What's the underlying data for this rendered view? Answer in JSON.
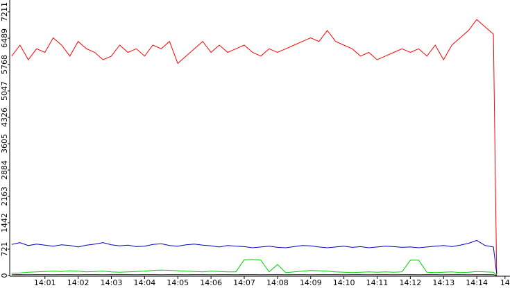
{
  "chart_data": {
    "type": "line",
    "x": [
      0,
      0.25,
      0.5,
      0.75,
      1,
      1.25,
      1.5,
      1.75,
      2,
      2.25,
      2.5,
      2.75,
      3,
      3.25,
      3.5,
      3.75,
      4,
      4.25,
      4.5,
      4.75,
      5,
      5.25,
      5.5,
      5.75,
      6,
      6.25,
      6.5,
      6.75,
      7,
      7.25,
      7.5,
      7.75,
      8,
      8.25,
      8.5,
      8.75,
      9,
      9.25,
      9.5,
      9.75,
      10,
      10.25,
      10.5,
      10.75,
      11,
      11.25,
      11.5,
      11.75,
      12,
      12.25,
      12.5,
      12.75,
      13,
      13.25,
      13.5,
      13.75,
      14,
      14.25,
      14.5,
      14.6
    ],
    "series": [
      {
        "color": "#ff0000",
        "values": [
          6000,
          6300,
          5900,
          6200,
          6100,
          6500,
          6300,
          6000,
          6400,
          6200,
          6100,
          5900,
          6000,
          6300,
          6100,
          6200,
          6000,
          6300,
          6200,
          6400,
          5800,
          6000,
          6200,
          6400,
          6100,
          6300,
          6100,
          6200,
          6300,
          6100,
          6000,
          6200,
          6100,
          6200,
          6300,
          6400,
          6500,
          6400,
          6700,
          6400,
          6300,
          6200,
          6000,
          6100,
          5900,
          6000,
          6100,
          6200,
          6100,
          6200,
          6000,
          6300,
          5900,
          6300,
          6500,
          6700,
          7000,
          6800,
          6600,
          0
        ]
      },
      {
        "color": "#0000c0",
        "values": [
          850,
          900,
          820,
          860,
          830,
          800,
          840,
          820,
          780,
          830,
          860,
          900,
          840,
          810,
          830,
          790,
          800,
          850,
          870,
          820,
          800,
          840,
          860,
          830,
          810,
          780,
          820,
          800,
          790,
          760,
          780,
          800,
          770,
          760,
          790,
          820,
          810,
          780,
          760,
          780,
          800,
          770,
          790,
          760,
          780,
          800,
          790,
          770,
          780,
          760,
          780,
          800,
          820,
          790,
          830,
          880,
          960,
          820,
          780,
          50
        ]
      },
      {
        "color": "#00d000",
        "values": [
          60,
          70,
          90,
          100,
          110,
          120,
          110,
          130,
          120,
          100,
          110,
          120,
          100,
          90,
          100,
          110,
          120,
          140,
          150,
          140,
          130,
          120,
          110,
          100,
          120,
          110,
          100,
          100,
          430,
          440,
          420,
          100,
          300,
          80,
          100,
          120,
          140,
          130,
          120,
          100,
          90,
          80,
          90,
          100,
          90,
          100,
          90,
          100,
          420,
          420,
          90,
          80,
          90,
          100,
          80,
          90,
          110,
          100,
          90,
          0
        ]
      },
      {
        "color": "#000000",
        "values": [
          20,
          25,
          20,
          22,
          25,
          20,
          24,
          22,
          20,
          25,
          22,
          20,
          24,
          22,
          25,
          20,
          22,
          24,
          20,
          22,
          25,
          20,
          22,
          24,
          20,
          25,
          22,
          20,
          24,
          22,
          20,
          25,
          22,
          20,
          24,
          22,
          20,
          25,
          22,
          24,
          20,
          22,
          25,
          20,
          22,
          24,
          20,
          22,
          25,
          20,
          22,
          24,
          20,
          22,
          25,
          20,
          24,
          22,
          20,
          0
        ]
      }
    ],
    "xlim": [
      -0.06,
      15
    ],
    "xticks": [
      {
        "value": 1,
        "label": "14:01"
      },
      {
        "value": 2,
        "label": "14:02"
      },
      {
        "value": 3,
        "label": "14:03"
      },
      {
        "value": 4,
        "label": "14:04"
      },
      {
        "value": 5,
        "label": "14:05"
      },
      {
        "value": 6,
        "label": "14:06"
      },
      {
        "value": 7,
        "label": "14:07"
      },
      {
        "value": 8,
        "label": "14:08"
      },
      {
        "value": 9,
        "label": "14:09"
      },
      {
        "value": 10,
        "label": "14:10"
      },
      {
        "value": 11,
        "label": "14:11"
      },
      {
        "value": 12,
        "label": "14:12"
      },
      {
        "value": 13,
        "label": "14:13"
      },
      {
        "value": 14,
        "label": "14:14"
      },
      {
        "value": 14.85,
        "label": "14"
      }
    ],
    "ylim": [
      0,
      7211
    ],
    "yticks": [
      0,
      721,
      1442,
      2163,
      2884,
      3605,
      4326,
      5047,
      5768,
      6489,
      7211
    ]
  }
}
